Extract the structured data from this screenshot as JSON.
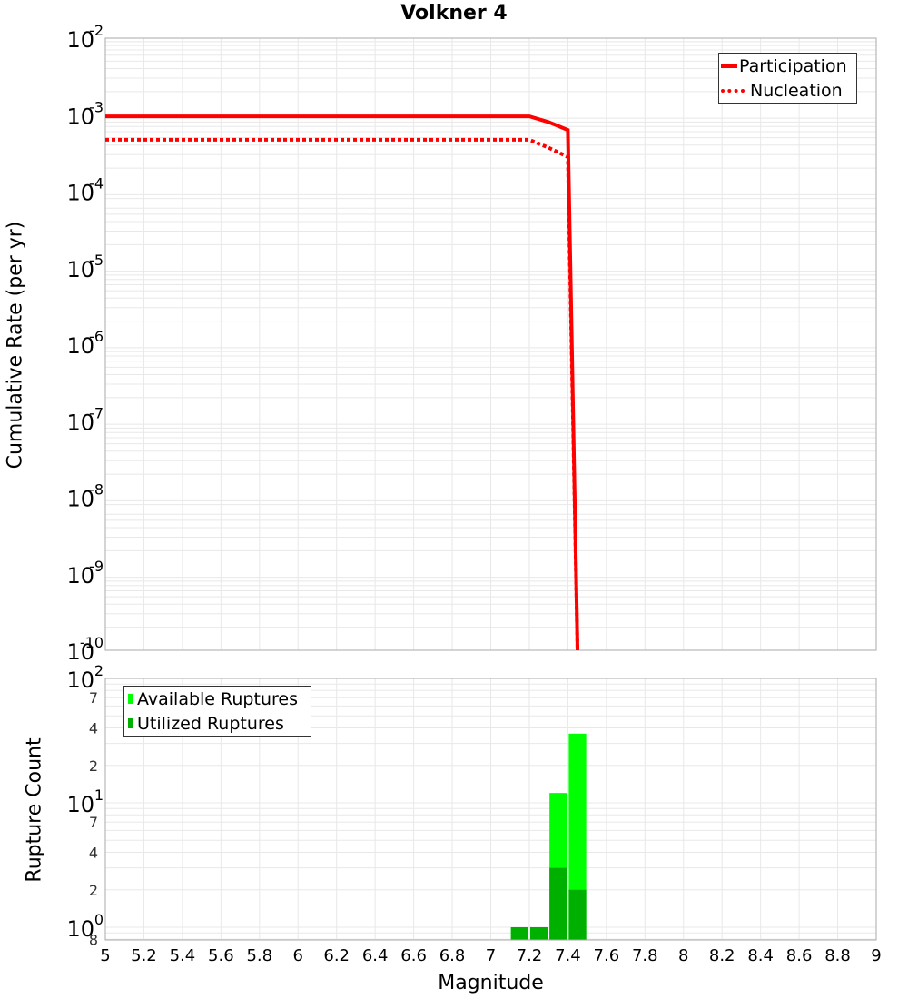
{
  "title": "Volkner 4",
  "top_plot": {
    "ylabel": "Cumulative Rate (per yr)",
    "yticks": [
      {
        "base": "10",
        "exp": "-2"
      },
      {
        "base": "10",
        "exp": "-3"
      },
      {
        "base": "10",
        "exp": "-4"
      },
      {
        "base": "10",
        "exp": "-5"
      },
      {
        "base": "10",
        "exp": "-6"
      },
      {
        "base": "10",
        "exp": "-7"
      },
      {
        "base": "10",
        "exp": "-8"
      },
      {
        "base": "10",
        "exp": "-9"
      },
      {
        "base": "10",
        "exp": "-10"
      }
    ],
    "legend": {
      "participation": "Participation",
      "nucleation": "Nucleation"
    }
  },
  "bottom_plot": {
    "ylabel": "Rupture Count",
    "yticks_major": [
      {
        "base": "10",
        "exp": "2"
      },
      {
        "base": "10",
        "exp": "1"
      },
      {
        "base": "10",
        "exp": "0"
      }
    ],
    "yticks_minor": [
      "7",
      "4",
      "2",
      "7",
      "4",
      "2",
      "8"
    ],
    "legend": {
      "available": "Available Ruptures",
      "utilized": "Utilized Ruptures"
    }
  },
  "xlabel": "Magnitude",
  "xticks": [
    "5",
    "5.2",
    "5.4",
    "5.6",
    "5.8",
    "6",
    "6.2",
    "6.4",
    "6.6",
    "6.8",
    "7",
    "7.2",
    "7.4",
    "7.6",
    "7.8",
    "8",
    "8.2",
    "8.4",
    "8.6",
    "8.8",
    "9"
  ],
  "colors": {
    "participation": "#ff0000",
    "nucleation": "#ff0000",
    "available": "#00ff00",
    "utilized": "#00b000",
    "grid": "#e8e8e8",
    "frame": "#aaaaaa"
  },
  "chart_data": [
    {
      "type": "line",
      "title": "Volkner 4",
      "xlabel": "Magnitude",
      "ylabel": "Cumulative Rate (per yr)",
      "yscale": "log",
      "xlim": [
        5,
        9
      ],
      "ylim": [
        1e-10,
        0.01
      ],
      "grid": true,
      "legend_position": "upper right",
      "series": [
        {
          "name": "Participation",
          "style": "solid",
          "x": [
            5.0,
            7.2,
            7.3,
            7.4,
            7.45
          ],
          "y": [
            0.00095,
            0.00095,
            0.0008,
            0.00063,
            1e-10
          ]
        },
        {
          "name": "Nucleation",
          "style": "dotted",
          "x": [
            5.0,
            7.2,
            7.3,
            7.4,
            7.45
          ],
          "y": [
            0.00047,
            0.00047,
            0.00037,
            0.00028,
            1e-10
          ]
        }
      ]
    },
    {
      "type": "bar",
      "xlabel": "Magnitude",
      "ylabel": "Rupture Count",
      "yscale": "log",
      "xlim": [
        5,
        9
      ],
      "ylim": [
        0.8,
        100
      ],
      "grid": true,
      "legend_position": "upper left",
      "categories": [
        7.15,
        7.25,
        7.35,
        7.45
      ],
      "series": [
        {
          "name": "Available Ruptures",
          "values": [
            1,
            1,
            12,
            36
          ]
        },
        {
          "name": "Utilized Ruptures",
          "values": [
            1,
            1,
            3,
            2
          ]
        }
      ]
    }
  ]
}
